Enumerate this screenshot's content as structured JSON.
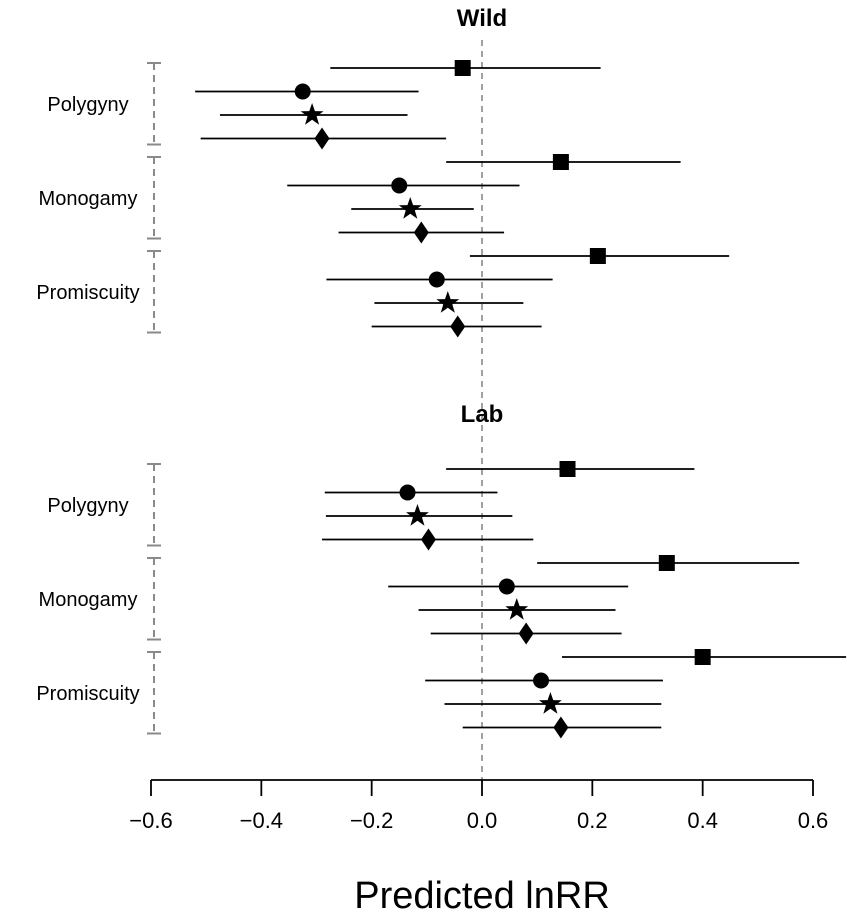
{
  "chart_data": {
    "type": "scatter",
    "xlabel": "Predicted lnRR",
    "xlim": [
      -0.6,
      0.6
    ],
    "x_ticks": [
      "−0.6",
      "−0.4",
      "−0.2",
      "0.0",
      "0.2",
      "0.4",
      "0.6"
    ],
    "x_tick_values": [
      -0.6,
      -0.4,
      -0.2,
      0.0,
      0.2,
      0.4,
      0.6
    ],
    "reference_line_x": 0.0,
    "legend": "none",
    "grid": false,
    "marker_shapes": [
      "square",
      "circle",
      "star",
      "diamond"
    ],
    "panels": [
      {
        "title": "Wild",
        "groups": [
          {
            "label": "Polygyny",
            "estimates": [
              {
                "marker": "square",
                "x": -0.035,
                "low": -0.275,
                "high": 0.215
              },
              {
                "marker": "circle",
                "x": -0.325,
                "low": -0.52,
                "high": -0.115
              },
              {
                "marker": "star",
                "x": -0.308,
                "low": -0.475,
                "high": -0.135
              },
              {
                "marker": "diamond",
                "x": -0.29,
                "low": -0.51,
                "high": -0.065
              }
            ]
          },
          {
            "label": "Monogamy",
            "estimates": [
              {
                "marker": "square",
                "x": 0.143,
                "low": -0.065,
                "high": 0.36
              },
              {
                "marker": "circle",
                "x": -0.15,
                "low": -0.353,
                "high": 0.068
              },
              {
                "marker": "star",
                "x": -0.13,
                "low": -0.237,
                "high": -0.015
              },
              {
                "marker": "diamond",
                "x": -0.11,
                "low": -0.26,
                "high": 0.04
              }
            ]
          },
          {
            "label": "Promiscuity",
            "estimates": [
              {
                "marker": "square",
                "x": 0.21,
                "low": -0.022,
                "high": 0.448
              },
              {
                "marker": "circle",
                "x": -0.082,
                "low": -0.282,
                "high": 0.128
              },
              {
                "marker": "star",
                "x": -0.062,
                "low": -0.195,
                "high": 0.075
              },
              {
                "marker": "diamond",
                "x": -0.044,
                "low": -0.2,
                "high": 0.108
              }
            ]
          }
        ]
      },
      {
        "title": "Lab",
        "groups": [
          {
            "label": "Polygyny",
            "estimates": [
              {
                "marker": "square",
                "x": 0.155,
                "low": -0.065,
                "high": 0.385
              },
              {
                "marker": "circle",
                "x": -0.135,
                "low": -0.285,
                "high": 0.028
              },
              {
                "marker": "star",
                "x": -0.117,
                "low": -0.283,
                "high": 0.055
              },
              {
                "marker": "diamond",
                "x": -0.097,
                "low": -0.29,
                "high": 0.093
              }
            ]
          },
          {
            "label": "Monogamy",
            "estimates": [
              {
                "marker": "square",
                "x": 0.335,
                "low": 0.1,
                "high": 0.575
              },
              {
                "marker": "circle",
                "x": 0.045,
                "low": -0.17,
                "high": 0.265
              },
              {
                "marker": "star",
                "x": 0.063,
                "low": -0.115,
                "high": 0.242
              },
              {
                "marker": "diamond",
                "x": 0.08,
                "low": -0.093,
                "high": 0.253
              }
            ]
          },
          {
            "label": "Promiscuity",
            "estimates": [
              {
                "marker": "square",
                "x": 0.4,
                "low": 0.145,
                "high": 0.66
              },
              {
                "marker": "circle",
                "x": 0.107,
                "low": -0.103,
                "high": 0.328
              },
              {
                "marker": "star",
                "x": 0.124,
                "low": -0.068,
                "high": 0.325
              },
              {
                "marker": "diamond",
                "x": 0.143,
                "low": -0.035,
                "high": 0.325
              }
            ]
          }
        ]
      }
    ]
  }
}
